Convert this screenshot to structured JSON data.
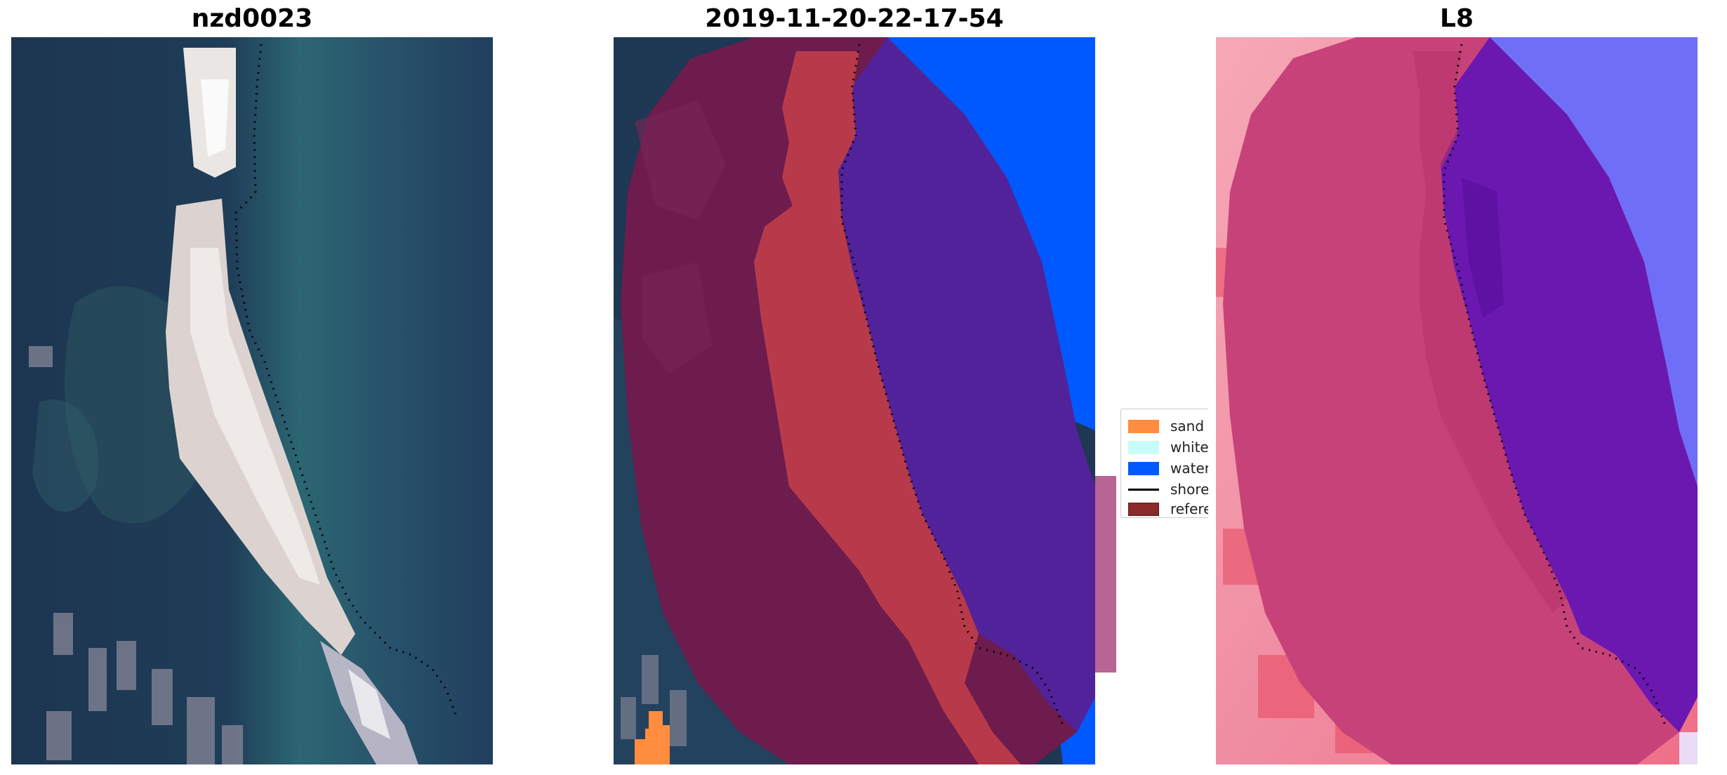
{
  "panels": {
    "left": {
      "title": "nzd0023"
    },
    "middle": {
      "title": "2019-11-20-22-17-54"
    },
    "right": {
      "title": "L8"
    }
  },
  "legend": {
    "items": [
      {
        "label": "sand",
        "color": "#ff8c3f"
      },
      {
        "label": "whitewater",
        "color": "#c8fcfa"
      },
      {
        "label": "water",
        "color": "#0059ff"
      },
      {
        "label": "shoreline",
        "color": "#000000"
      },
      {
        "label": "reference",
        "color": "#8b2b2b"
      }
    ]
  },
  "colors": {
    "ocean_dark": "#1e3753",
    "ocean_teal": "#2e6a78",
    "beach_white": "#e8e1dd",
    "buffer_purple": "#6e1b4c",
    "sand_red": "#b83a4a",
    "water_violet": "#52229a",
    "water_blue": "#0059ff",
    "l8_pink": "#c8427a",
    "l8_light": "#f3a0b0",
    "l8_violet": "#6a18b0",
    "l8_blue": "#6a6af8"
  }
}
